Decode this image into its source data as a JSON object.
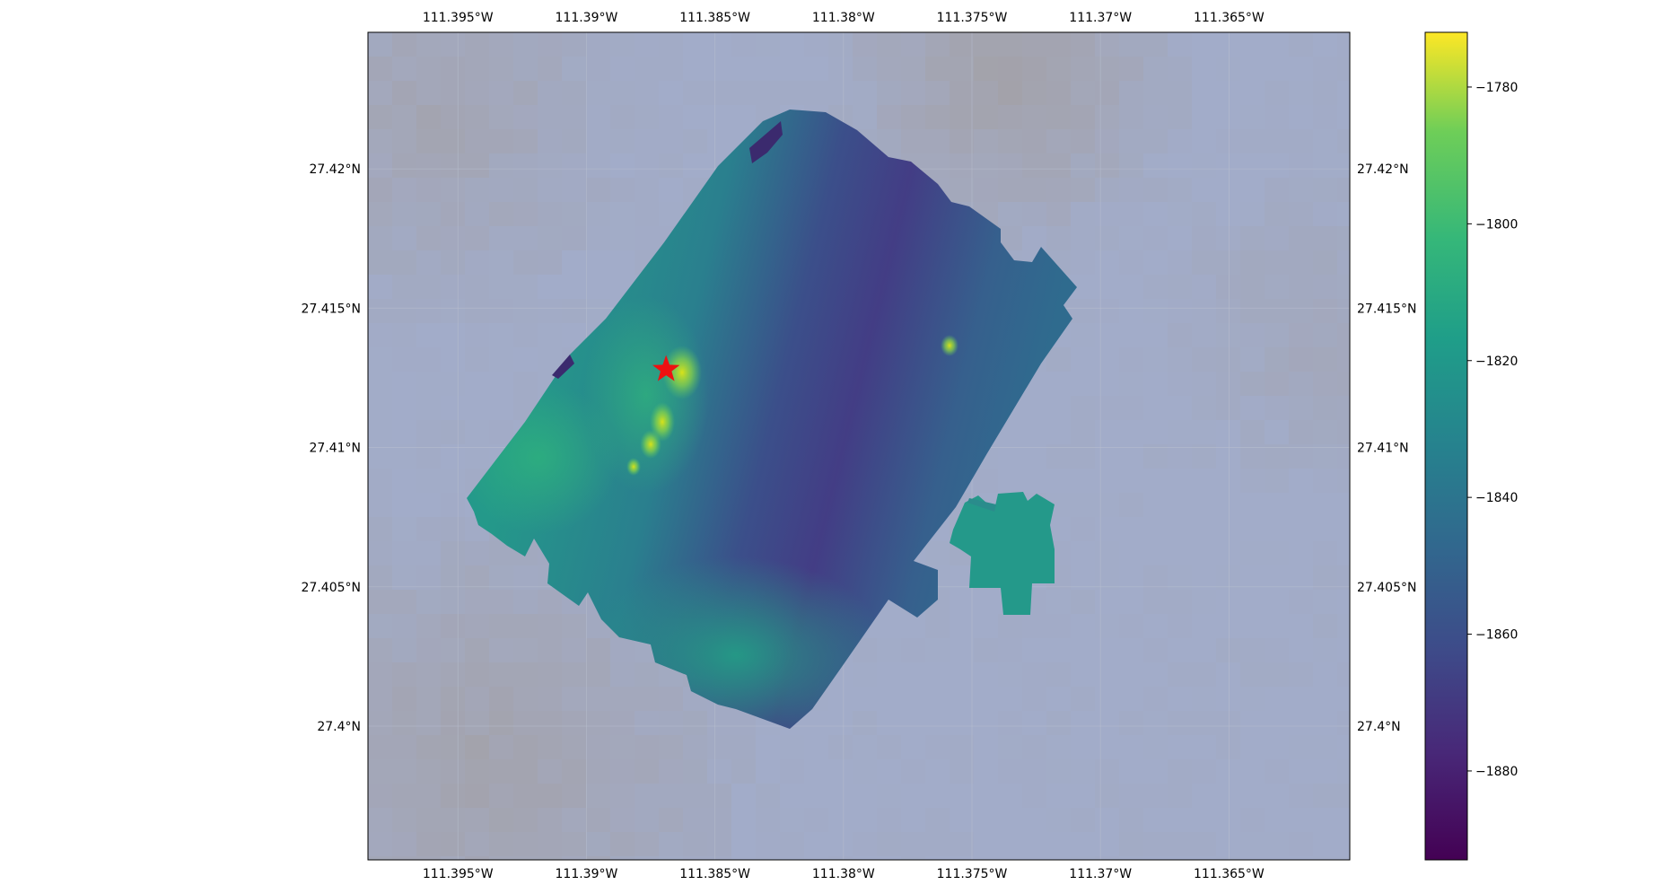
{
  "map": {
    "type": "bathymetry-map",
    "x_ticks": [
      "111.395°W",
      "111.39°W",
      "111.385°W",
      "111.38°W",
      "111.375°W",
      "111.37°W",
      "111.365°W"
    ],
    "x_tick_values": [
      -111.395,
      -111.39,
      -111.385,
      -111.38,
      -111.375,
      -111.37,
      -111.365
    ],
    "y_ticks": [
      "27.42°N",
      "27.415°N",
      "27.41°N",
      "27.405°N",
      "27.4°N"
    ],
    "y_tick_values": [
      27.42,
      27.415,
      27.41,
      27.405,
      27.4
    ],
    "lon_range": [
      -111.3985,
      -111.3603
    ],
    "lat_range": [
      27.3952,
      27.4249
    ],
    "gridlines": true,
    "marker": {
      "symbol": "star",
      "color": "#ee1111",
      "lon": -111.3869,
      "lat": 27.4128
    }
  },
  "colorbar": {
    "colormap": "viridis",
    "range": [
      -1893,
      -1772
    ],
    "ticks": [
      "−1780",
      "−1800",
      "−1820",
      "−1840",
      "−1860",
      "−1880"
    ],
    "tick_values": [
      -1780,
      -1800,
      -1820,
      -1840,
      -1860,
      -1880
    ]
  }
}
